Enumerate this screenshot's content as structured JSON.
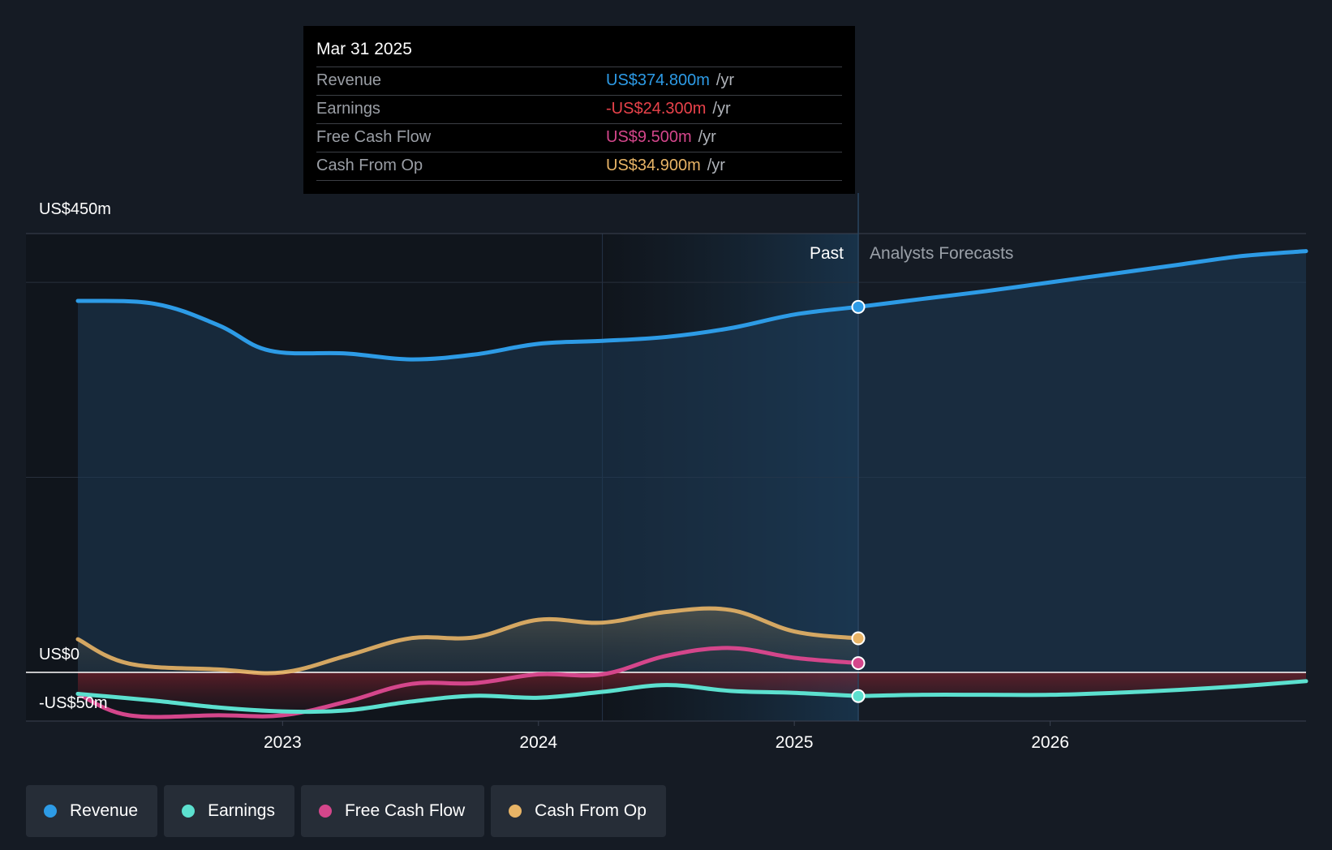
{
  "tooltip": {
    "date": "Mar 31 2025",
    "rows": [
      {
        "label": "Revenue",
        "value": "US$374.800m",
        "unit": "/yr",
        "color": "#2d9be6"
      },
      {
        "label": "Earnings",
        "value": "-US$24.300m",
        "unit": "/yr",
        "color": "#e8424a"
      },
      {
        "label": "Free Cash Flow",
        "value": "US$9.500m",
        "unit": "/yr",
        "color": "#d4468b"
      },
      {
        "label": "Cash From Op",
        "value": "US$34.900m",
        "unit": "/yr",
        "color": "#e8b466"
      }
    ]
  },
  "legend": [
    {
      "label": "Revenue",
      "color": "#2d9be6"
    },
    {
      "label": "Earnings",
      "color": "#5ce0cf"
    },
    {
      "label": "Free Cash Flow",
      "color": "#d4468b"
    },
    {
      "label": "Cash From Op",
      "color": "#e8b466"
    }
  ],
  "chart_data": {
    "type": "line",
    "ylim": [
      -50,
      450
    ],
    "xlim": [
      2022.2,
      2027.0
    ],
    "y_tick_labels": [
      {
        "value": 450,
        "label": "US$450m"
      },
      {
        "value": 0,
        "label": "US$0"
      },
      {
        "value": -50,
        "label": "-US$50m"
      }
    ],
    "x_ticks": [
      {
        "value": 2023,
        "label": "2023"
      },
      {
        "value": 2024,
        "label": "2024"
      },
      {
        "value": 2025,
        "label": "2025"
      },
      {
        "value": 2026,
        "label": "2026"
      }
    ],
    "past_label": "Past",
    "forecast_label": "Analysts Forecasts",
    "divider_x": 2025.25,
    "highlight_start": 2024.25,
    "series": [
      {
        "name": "Revenue",
        "color": "#2d9be6",
        "past": [
          [
            2022.2,
            381
          ],
          [
            2022.5,
            378
          ],
          [
            2022.75,
            356
          ],
          [
            2022.95,
            330
          ],
          [
            2023.25,
            327
          ],
          [
            2023.5,
            321
          ],
          [
            2023.75,
            326
          ],
          [
            2024.0,
            337
          ],
          [
            2024.25,
            340
          ],
          [
            2024.5,
            344
          ],
          [
            2024.75,
            353
          ],
          [
            2025.0,
            367
          ],
          [
            2025.25,
            374.8
          ]
        ],
        "forecast": [
          [
            2025.25,
            374.8
          ],
          [
            2025.5,
            383
          ],
          [
            2025.75,
            391
          ],
          [
            2026.0,
            400
          ],
          [
            2026.25,
            409
          ],
          [
            2026.5,
            418
          ],
          [
            2026.75,
            427
          ],
          [
            2027.0,
            432
          ]
        ]
      },
      {
        "name": "Earnings",
        "color": "#5ce0cf",
        "past": [
          [
            2022.2,
            -22
          ],
          [
            2022.5,
            -29
          ],
          [
            2022.75,
            -36
          ],
          [
            2023.0,
            -40
          ],
          [
            2023.25,
            -39
          ],
          [
            2023.5,
            -30
          ],
          [
            2023.75,
            -24
          ],
          [
            2024.0,
            -26
          ],
          [
            2024.25,
            -20
          ],
          [
            2024.5,
            -13
          ],
          [
            2024.75,
            -19
          ],
          [
            2025.0,
            -21
          ],
          [
            2025.25,
            -24.3
          ]
        ],
        "forecast": [
          [
            2025.25,
            -24.3
          ],
          [
            2025.5,
            -23
          ],
          [
            2025.75,
            -23
          ],
          [
            2026.0,
            -23
          ],
          [
            2026.25,
            -21
          ],
          [
            2026.5,
            -18
          ],
          [
            2026.75,
            -14
          ],
          [
            2027.0,
            -9
          ]
        ]
      },
      {
        "name": "Free Cash Flow",
        "color": "#d4468b",
        "past": [
          [
            2022.2,
            -22
          ],
          [
            2022.4,
            -44
          ],
          [
            2022.75,
            -44
          ],
          [
            2023.0,
            -44
          ],
          [
            2023.25,
            -30
          ],
          [
            2023.5,
            -12
          ],
          [
            2023.75,
            -11
          ],
          [
            2024.0,
            -2
          ],
          [
            2024.25,
            -2
          ],
          [
            2024.5,
            17
          ],
          [
            2024.75,
            25
          ],
          [
            2025.0,
            15
          ],
          [
            2025.25,
            9.5
          ]
        ],
        "forecast": []
      },
      {
        "name": "Cash From Op",
        "color": "#e8b466",
        "past": [
          [
            2022.2,
            34
          ],
          [
            2022.4,
            9
          ],
          [
            2022.75,
            3
          ],
          [
            2023.0,
            0
          ],
          [
            2023.25,
            17
          ],
          [
            2023.5,
            35
          ],
          [
            2023.75,
            36
          ],
          [
            2024.0,
            54
          ],
          [
            2024.25,
            51
          ],
          [
            2024.5,
            62
          ],
          [
            2024.75,
            64
          ],
          [
            2025.0,
            42
          ],
          [
            2025.25,
            34.9
          ]
        ],
        "forecast": []
      }
    ]
  }
}
